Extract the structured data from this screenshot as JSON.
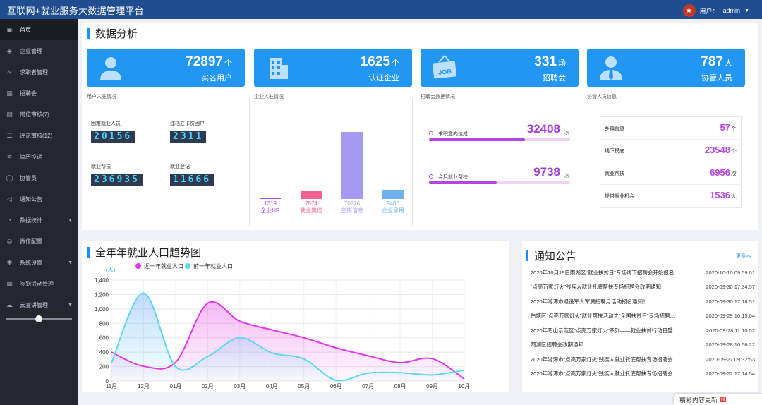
{
  "app": {
    "title": "互联网+就业服务大数据管理平台",
    "user_label": "用户：",
    "user_name": "admin",
    "dropdown_icon": "chevron-down-icon"
  },
  "sidebar": {
    "items": [
      {
        "label": "首页",
        "icon": "home-icon",
        "active": true
      },
      {
        "label": "企业管理",
        "icon": "shield-icon"
      },
      {
        "label": "求职者管理",
        "icon": "layers-icon"
      },
      {
        "label": "招聘会",
        "icon": "calendar-icon"
      },
      {
        "label": "岗位审核(7)",
        "icon": "doc-icon"
      },
      {
        "label": "评论审核(12)",
        "icon": "list-icon"
      },
      {
        "label": "简历投递",
        "icon": "layers-icon"
      },
      {
        "label": "协管员",
        "icon": "user-icon"
      },
      {
        "label": "通知公告",
        "icon": "speaker-icon"
      },
      {
        "label": "数据统计",
        "icon": "pie-icon",
        "caret": true
      },
      {
        "label": "微信配置",
        "icon": "wechat-icon"
      },
      {
        "label": "系统设置",
        "icon": "gear-icon",
        "caret": true
      },
      {
        "label": "签到活动管理",
        "icon": "calendar-icon"
      },
      {
        "label": "云宣讲管理",
        "icon": "cloud-icon",
        "caret": true
      }
    ]
  },
  "dashboard": {
    "title": "数据分析",
    "cards": [
      {
        "value": "72897",
        "unit": "个",
        "label": "实名用户",
        "icon": "user-icon"
      },
      {
        "value": "1625",
        "unit": "个",
        "label": "认证企业",
        "icon": "building-icon"
      },
      {
        "value": "331",
        "unit": "场",
        "label": "招聘会",
        "icon": "job-sign-icon"
      },
      {
        "value": "787",
        "unit": "人",
        "label": "协管人员",
        "icon": "staff-icon"
      }
    ],
    "user_section": {
      "title": "用户入驻情况",
      "items": [
        {
          "label": "困难就业人员",
          "value": "20156"
        },
        {
          "label": "建档立卡贫困户",
          "value": "2311"
        },
        {
          "label": "就业帮扶",
          "value": "236935"
        },
        {
          "label": "就业登记",
          "value": "11666"
        }
      ]
    },
    "company_section": {
      "title": "企业入驻情况",
      "bars": [
        {
          "value": "1319",
          "label": "企业HR",
          "color": "#a64ee3",
          "amount": 1319
        },
        {
          "value": "7974",
          "label": "就业岗位",
          "color": "#f06292",
          "amount": 7974
        },
        {
          "value": "70226",
          "label": "空岗信息",
          "color": "#a59af1",
          "amount": 70226
        },
        {
          "value": "9486",
          "label": "企业录用",
          "color": "#6fb1ee",
          "amount": 9486
        }
      ]
    },
    "fair_section": {
      "title": "招聘会数据情况",
      "items": [
        {
          "label": "求职意向达成",
          "value": "32408",
          "unit": "次",
          "progress": 0.68
        },
        {
          "label": "会后就业帮扶",
          "value": "9738",
          "unit": "次",
          "progress": 0.48
        }
      ]
    },
    "staff_section": {
      "title": "协管人员信息",
      "items": [
        {
          "label": "乡镇街道",
          "value": "57",
          "unit": "个"
        },
        {
          "label": "线下摸底",
          "value": "23548",
          "unit": "个"
        },
        {
          "label": "就业帮扶",
          "value": "6956",
          "unit": "次"
        },
        {
          "label": "提供就业机会",
          "value": "1536",
          "unit": "人"
        }
      ]
    }
  },
  "trend": {
    "title": "全年年就业人口趋势图",
    "chart_data": {
      "type": "line",
      "ylabel": "(人)",
      "ylim": [
        0,
        1400
      ],
      "yticks": [
        "1,400",
        "1,200",
        "1,000",
        "800",
        "600",
        "400",
        "200",
        "0"
      ],
      "categories": [
        "11月",
        "12月",
        "01月",
        "02月",
        "03月",
        "04月",
        "05月",
        "06月",
        "07月",
        "08月",
        "09月",
        "10月"
      ],
      "series": [
        {
          "name": "近一年就业人口",
          "color": "#e535e8",
          "values": [
            400,
            205,
            260,
            1080,
            830,
            710,
            600,
            460,
            350,
            255,
            310,
            30
          ]
        },
        {
          "name": "前一年就业人口",
          "color": "#5ad8f0",
          "values": [
            250,
            1220,
            200,
            340,
            600,
            390,
            305,
            10,
            110,
            115,
            85,
            150
          ]
        }
      ]
    }
  },
  "notices": {
    "title": "通知公告",
    "more": "更多>>",
    "items": [
      {
        "title": "2020年10月19日雨湖区“就业扶贫日”专场线下招聘会开始报名…",
        "date": "2020-10-10 09:59:01"
      },
      {
        "title": "“点亮万家灯火”残疾人就业托底帮扶专场招聘会改期通知",
        "date": "2020-09-30 17:34:57"
      },
      {
        "title": "2020年湘潭市退役军人军属招聘月活动报名通知！",
        "date": "2020-09-30 17:18:51"
      },
      {
        "title": "岳塘区“点亮万家灯火”就业帮扶活动之“全国扶贫日”专场招聘…",
        "date": "2020-09-29 10:15:04"
      },
      {
        "title": "2020年昭山示范区“点亮万家灯火”系列——就业扶贫行动日暨…",
        "date": "2020-09-28 11:10:52"
      },
      {
        "title": "雨湖区招聘会改期通知",
        "date": "2020-09-28 10:56:22"
      },
      {
        "title": "2020年湘潭市“点亮万家灯火”残疾人就业托底帮扶专场招聘会…",
        "date": "2020-09-27 09:32:53"
      },
      {
        "title": "2020年湘潭市“点亮万家灯火”残疾人就业托底帮扶专场招聘会…",
        "date": "2020-09-22 17:14:54"
      }
    ]
  },
  "footer_badge": {
    "text": "精彩内容更新",
    "tag": "N"
  }
}
